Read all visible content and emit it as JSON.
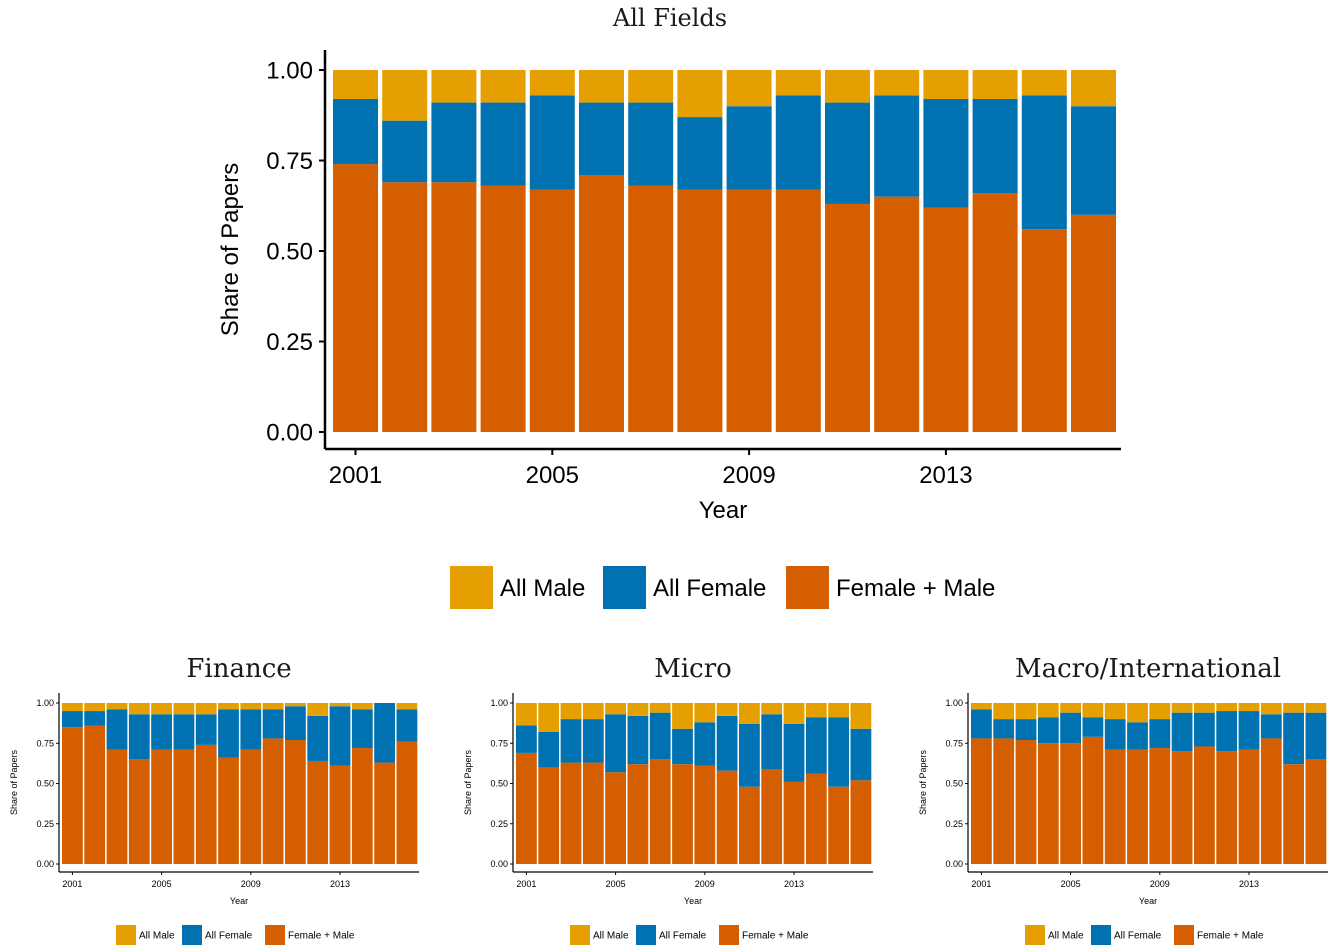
{
  "chart_data": [
    {
      "type": "bar",
      "stacked": true,
      "title": "All Fields",
      "xlabel": "Year",
      "ylabel": "Share of Papers",
      "ylim": [
        0,
        1
      ],
      "yticks": [
        "0.00",
        "0.25",
        "0.50",
        "0.75",
        "1.00"
      ],
      "x": [
        2001,
        2002,
        2003,
        2004,
        2005,
        2006,
        2007,
        2008,
        2009,
        2010,
        2011,
        2012,
        2013,
        2014,
        2015,
        2016
      ],
      "xticks": [
        "2001",
        "2005",
        "2009",
        "2013"
      ],
      "legend": "bottom",
      "series": [
        {
          "name": "Female + Male",
          "color": "#D55E00",
          "values": [
            0.74,
            0.69,
            0.69,
            0.68,
            0.67,
            0.71,
            0.68,
            0.67,
            0.67,
            0.67,
            0.63,
            0.65,
            0.62,
            0.66,
            0.56,
            0.6
          ]
        },
        {
          "name": "All Female",
          "color": "#0072B2",
          "values": [
            0.18,
            0.17,
            0.22,
            0.23,
            0.26,
            0.2,
            0.23,
            0.2,
            0.23,
            0.26,
            0.28,
            0.28,
            0.3,
            0.26,
            0.37,
            0.3
          ]
        },
        {
          "name": "All Male",
          "color": "#E69F00",
          "values": [
            0.08,
            0.14,
            0.09,
            0.09,
            0.07,
            0.09,
            0.09,
            0.13,
            0.1,
            0.07,
            0.09,
            0.07,
            0.08,
            0.08,
            0.07,
            0.1
          ]
        }
      ]
    },
    {
      "type": "bar",
      "stacked": true,
      "title": "Finance",
      "xlabel": "Year",
      "ylabel": "Share of Papers",
      "ylim": [
        0,
        1
      ],
      "yticks": [
        "0.00",
        "0.25",
        "0.50",
        "0.75",
        "1.00"
      ],
      "x": [
        2001,
        2002,
        2003,
        2004,
        2005,
        2006,
        2007,
        2008,
        2009,
        2010,
        2011,
        2012,
        2013,
        2014,
        2015,
        2016
      ],
      "xticks": [
        "2001",
        "2005",
        "2009",
        "2013"
      ],
      "legend": "bottom",
      "series": [
        {
          "name": "Female + Male",
          "color": "#D55E00",
          "values": [
            0.85,
            0.86,
            0.71,
            0.65,
            0.71,
            0.71,
            0.74,
            0.66,
            0.71,
            0.78,
            0.77,
            0.64,
            0.61,
            0.72,
            0.63,
            0.76
          ]
        },
        {
          "name": "All Female",
          "color": "#0072B2",
          "values": [
            0.1,
            0.09,
            0.25,
            0.28,
            0.22,
            0.22,
            0.19,
            0.3,
            0.25,
            0.18,
            0.21,
            0.28,
            0.37,
            0.24,
            0.37,
            0.2
          ]
        },
        {
          "name": "All Male",
          "color": "#E69F00",
          "values": [
            0.05,
            0.05,
            0.04,
            0.07,
            0.07,
            0.07,
            0.07,
            0.04,
            0.04,
            0.04,
            0.02,
            0.08,
            0.02,
            0.04,
            0.0,
            0.04
          ]
        }
      ]
    },
    {
      "type": "bar",
      "stacked": true,
      "title": "Micro",
      "xlabel": "Year",
      "ylabel": "Share of Papers",
      "ylim": [
        0,
        1
      ],
      "yticks": [
        "0.00",
        "0.25",
        "0.50",
        "0.75",
        "1.00"
      ],
      "x": [
        2001,
        2002,
        2003,
        2004,
        2005,
        2006,
        2007,
        2008,
        2009,
        2010,
        2011,
        2012,
        2013,
        2014,
        2015,
        2016
      ],
      "xticks": [
        "2001",
        "2005",
        "2009",
        "2013"
      ],
      "legend": "bottom",
      "series": [
        {
          "name": "Female + Male",
          "color": "#D55E00",
          "values": [
            0.69,
            0.6,
            0.63,
            0.63,
            0.57,
            0.62,
            0.65,
            0.62,
            0.61,
            0.58,
            0.48,
            0.59,
            0.51,
            0.56,
            0.48,
            0.52
          ]
        },
        {
          "name": "All Female",
          "color": "#0072B2",
          "values": [
            0.17,
            0.22,
            0.27,
            0.27,
            0.36,
            0.3,
            0.29,
            0.22,
            0.27,
            0.34,
            0.39,
            0.34,
            0.36,
            0.35,
            0.43,
            0.32
          ]
        },
        {
          "name": "All Male",
          "color": "#E69F00",
          "values": [
            0.14,
            0.18,
            0.1,
            0.1,
            0.07,
            0.08,
            0.06,
            0.16,
            0.12,
            0.08,
            0.13,
            0.07,
            0.13,
            0.09,
            0.09,
            0.16
          ]
        }
      ]
    },
    {
      "type": "bar",
      "stacked": true,
      "title": "Macro/International",
      "xlabel": "Year",
      "ylabel": "Share of Papers",
      "ylim": [
        0,
        1
      ],
      "yticks": [
        "0.00",
        "0.25",
        "0.50",
        "0.75",
        "1.00"
      ],
      "x": [
        2001,
        2002,
        2003,
        2004,
        2005,
        2006,
        2007,
        2008,
        2009,
        2010,
        2011,
        2012,
        2013,
        2014,
        2015,
        2016
      ],
      "xticks": [
        "2001",
        "2005",
        "2009",
        "2013"
      ],
      "legend": "bottom",
      "series": [
        {
          "name": "Female + Male",
          "color": "#D55E00",
          "values": [
            0.78,
            0.78,
            0.77,
            0.75,
            0.75,
            0.79,
            0.71,
            0.71,
            0.72,
            0.7,
            0.73,
            0.7,
            0.71,
            0.78,
            0.62,
            0.65
          ]
        },
        {
          "name": "All Female",
          "color": "#0072B2",
          "values": [
            0.18,
            0.12,
            0.13,
            0.16,
            0.19,
            0.12,
            0.19,
            0.17,
            0.18,
            0.24,
            0.21,
            0.25,
            0.24,
            0.15,
            0.32,
            0.29
          ]
        },
        {
          "name": "All Male",
          "color": "#E69F00",
          "values": [
            0.04,
            0.1,
            0.1,
            0.09,
            0.06,
            0.09,
            0.1,
            0.12,
            0.1,
            0.06,
            0.06,
            0.05,
            0.05,
            0.07,
            0.06,
            0.06
          ]
        }
      ]
    }
  ],
  "legend_order": [
    "All Male",
    "All Female",
    "Female + Male"
  ]
}
